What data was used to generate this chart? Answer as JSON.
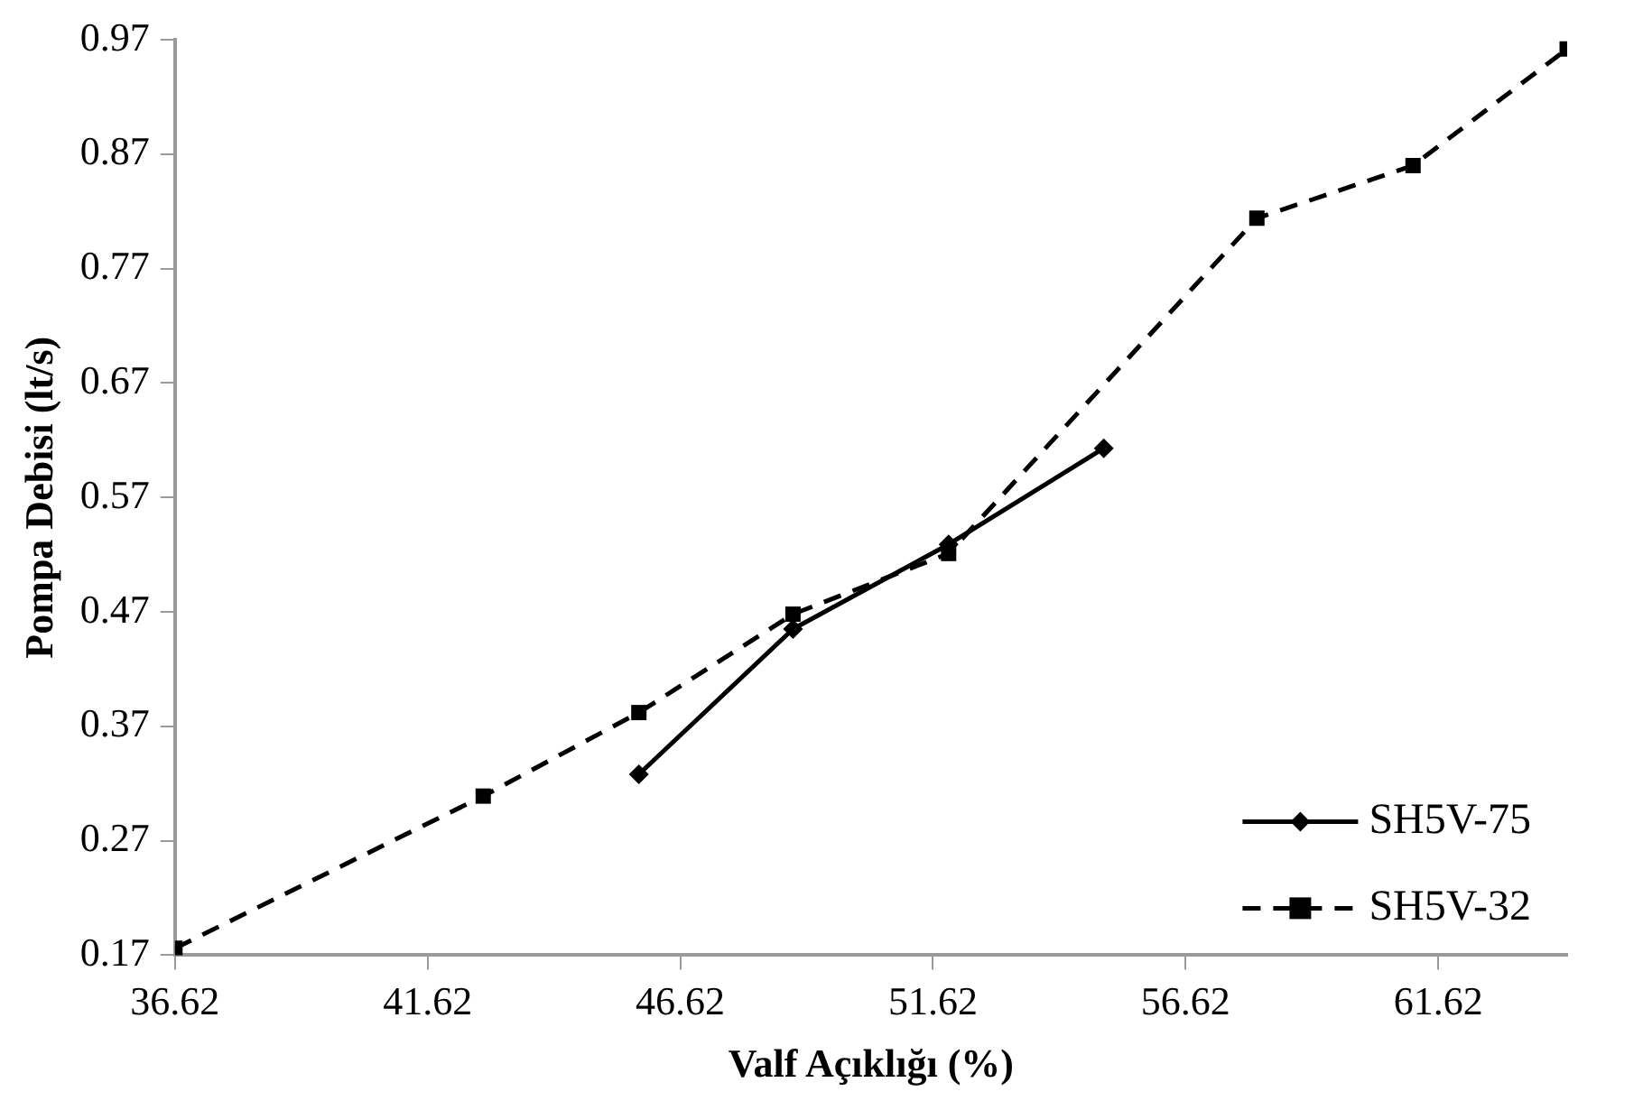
{
  "chart_data": {
    "type": "line",
    "xlabel": "Valf Açıklığı (%)",
    "ylabel": "Pompa Debisi (lt/s)",
    "xlim": [
      36.62,
      64.17
    ],
    "xticks": [
      36.62,
      41.62,
      46.62,
      51.62,
      56.62,
      61.62
    ],
    "ylim": [
      0.17,
      0.97
    ],
    "yticks": [
      0.17,
      0.27,
      0.37,
      0.47,
      0.57,
      0.67,
      0.77,
      0.87,
      0.97
    ],
    "grid": false,
    "legend": "bottom right",
    "series": [
      {
        "name": "SH5V-75",
        "color": "#000000",
        "marker": "diamond",
        "line_style": "solid",
        "x": [
          45.8,
          48.85,
          51.93,
          55.0
        ],
        "values": [
          0.328,
          0.455,
          0.529,
          0.613
        ]
      },
      {
        "name": "SH5V-32",
        "color": "#000000",
        "marker": "square",
        "line_style": "dashed",
        "x": [
          36.62,
          42.72,
          45.8,
          48.85,
          51.93,
          58.03,
          61.12,
          64.17
        ],
        "values": [
          0.176,
          0.309,
          0.382,
          0.468,
          0.521,
          0.814,
          0.86,
          0.962
        ]
      }
    ]
  }
}
